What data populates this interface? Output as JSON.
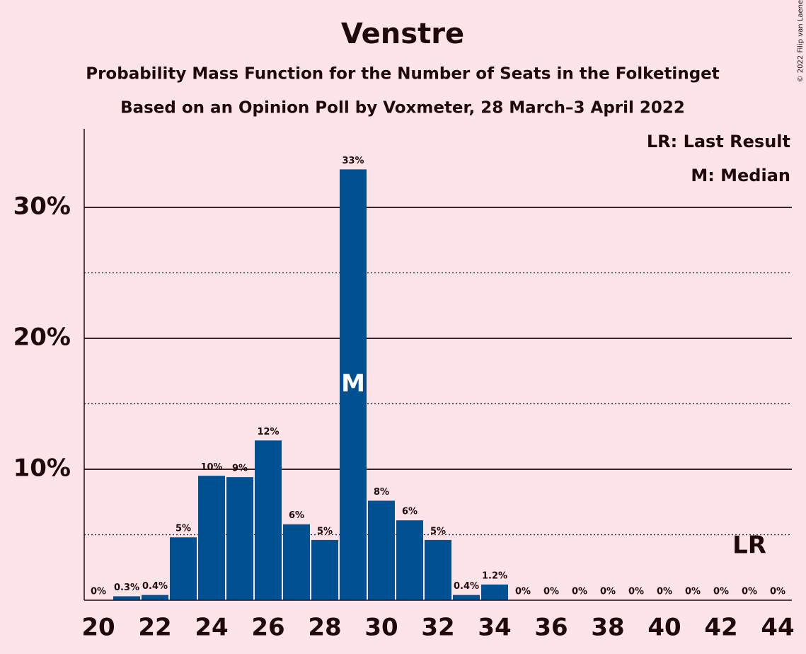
{
  "chart_data": {
    "type": "bar",
    "title": "Venstre",
    "subtitle": "Probability Mass Function for the Number of Seats in the Folketinget",
    "subtitle2": "Based on an Opinion Poll by Voxmeter, 28 March–3 April 2022",
    "copyright": "© 2022 Filip van Laenen",
    "legend": [
      "LR: Last Result",
      "M: Median"
    ],
    "color": "#005192",
    "x": [
      20,
      21,
      22,
      23,
      24,
      25,
      26,
      27,
      28,
      29,
      30,
      31,
      32,
      33,
      34,
      35,
      36,
      37,
      38,
      39,
      40,
      41,
      42,
      43,
      44
    ],
    "values": [
      0,
      0.3,
      0.4,
      4.8,
      9.5,
      9.4,
      12.2,
      5.8,
      4.6,
      32.9,
      7.6,
      6.1,
      4.6,
      0.4,
      1.2,
      0,
      0,
      0,
      0,
      0,
      0,
      0,
      0,
      0,
      0
    ],
    "value_labels": [
      "0%",
      "0.3%",
      "0.4%",
      "5%",
      "10%",
      "9%",
      "12%",
      "6%",
      "5%",
      "33%",
      "8%",
      "6%",
      "5%",
      "0.4%",
      "1.2%",
      "0%",
      "0%",
      "0%",
      "0%",
      "0%",
      "0%",
      "0%",
      "0%",
      "0%",
      "0%"
    ],
    "xlim": [
      19.5,
      44.5
    ],
    "xticks": [
      20,
      22,
      24,
      26,
      28,
      30,
      32,
      34,
      36,
      38,
      40,
      42,
      44
    ],
    "ylim": [
      0,
      36
    ],
    "yticks": [
      {
        "value": 10,
        "label": "10%"
      },
      {
        "value": 20,
        "label": "20%"
      },
      {
        "value": 30,
        "label": "30%"
      }
    ],
    "minor_yticks": [
      5,
      15,
      25
    ],
    "grid": true,
    "median": 29,
    "median_marker": "M",
    "last_result": 43,
    "last_result_marker": "LR"
  }
}
